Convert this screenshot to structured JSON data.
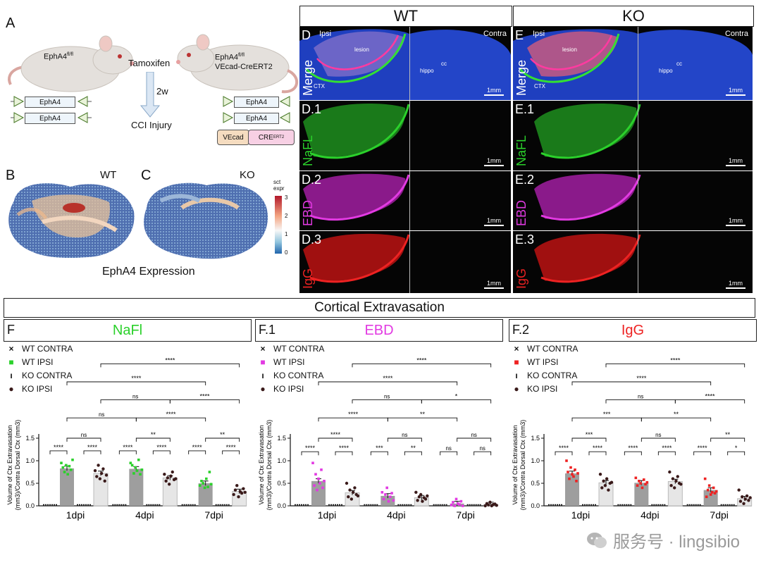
{
  "panel_a": {
    "letter": "A",
    "wt_mouse": "EphA4",
    "wt_mouse_sup": "fl/fl",
    "ko_mouse_line1": "EphA4",
    "ko_mouse_sup": "fl/fl",
    "ko_mouse_line2": "VEcad-CreERT2",
    "gene": "EphA4",
    "loxp": "LoxP",
    "vecad": "VEcad",
    "cre": "CRE",
    "cre_sup": "ERT2",
    "treatment": "Tamoxifen",
    "interval": "2w",
    "injury": "CCI Injury"
  },
  "panel_b": {
    "letter": "B",
    "label": "WT"
  },
  "panel_c": {
    "letter": "C",
    "label": "KO",
    "colorbar_title": "sct\nexpr",
    "colorbar_ticks": [
      "3",
      "2",
      "1",
      "0"
    ],
    "caption": "EphA4 Expression"
  },
  "micro": {
    "wt_header": "WT",
    "ko_header": "KO",
    "ipsi": "Ipsi",
    "contra": "Contra",
    "scale": "1mm",
    "rows": [
      {
        "wt_tag": "D",
        "ko_tag": "E",
        "side": "Merge",
        "color": "#ffffff"
      },
      {
        "wt_tag": "D.1",
        "ko_tag": "E.1",
        "side": "NaFL",
        "color": "#2bd12b"
      },
      {
        "wt_tag": "D.2",
        "ko_tag": "E.2",
        "side": "EBD",
        "color": "#e23ae2"
      },
      {
        "wt_tag": "D.3",
        "ko_tag": "E.3",
        "side": "IgG",
        "color": "#ee2222"
      }
    ],
    "annotations": {
      "lesion": "lesion",
      "ctx": "CTX",
      "hippo": "hippo",
      "cc": "cc"
    }
  },
  "section_title": "Cortical Extravasation",
  "legend": [
    "WT CONTRA",
    "WT IPSI",
    "KO CONTRA",
    "KO IPSI"
  ],
  "chart_data": [
    {
      "type": "bar",
      "panel": "F",
      "title": "NaFl",
      "title_color": "#2bd12b",
      "accent": "#2bd12b",
      "categories": [
        "1dpi",
        "4dpi",
        "7dpi"
      ],
      "ylabel": "Volume of Ctx Extravasation\n(mm3)/Contra Dorsal Ctx (mm3)",
      "yticks": [
        0.0,
        0.5,
        1.0,
        1.5
      ],
      "ytick_labels": [
        "0.0",
        "0.5",
        "1.0",
        "1.5"
      ],
      "ylim": [
        0,
        1.5
      ],
      "series": [
        {
          "name": "WT CONTRA",
          "values": [
            0.0,
            0.0,
            0.0
          ]
        },
        {
          "name": "WT IPSI",
          "values": [
            0.83,
            0.82,
            0.5
          ]
        },
        {
          "name": "KO CONTRA",
          "values": [
            0.01,
            0.0,
            0.0
          ]
        },
        {
          "name": "KO IPSI",
          "values": [
            0.72,
            0.62,
            0.32
          ]
        }
      ],
      "points": {
        "WT IPSI": [
          [
            0.95,
            0.85,
            0.75,
            0.9,
            0.7,
            0.88,
            0.8,
            1.02
          ],
          [
            0.95,
            0.9,
            0.72,
            0.85,
            0.78,
            1.02,
            0.7,
            0.8
          ],
          [
            0.45,
            0.55,
            0.5,
            0.4,
            0.6,
            0.42,
            0.75,
            0.48
          ]
        ],
        "KO IPSI": [
          [
            0.78,
            0.65,
            0.9,
            0.6,
            0.72,
            0.82,
            0.55,
            0.68
          ],
          [
            0.7,
            0.55,
            0.62,
            0.48,
            0.66,
            0.75,
            0.58,
            0.6
          ],
          [
            0.25,
            0.35,
            0.45,
            0.2,
            0.32,
            0.28,
            0.38,
            0.3
          ]
        ]
      },
      "brackets": [
        {
          "y": 1.22,
          "a": 0,
          "b": 1,
          "text": "****"
        },
        {
          "y": 1.22,
          "a": 2,
          "b": 3,
          "text": "****"
        },
        {
          "y": 1.22,
          "a": 4,
          "b": 5,
          "text": "****"
        },
        {
          "y": 1.22,
          "a": 6,
          "b": 7,
          "text": "****"
        },
        {
          "y": 1.22,
          "a": 8,
          "b": 9,
          "text": "****"
        },
        {
          "y": 1.22,
          "a": 10,
          "b": 11,
          "text": "****"
        },
        {
          "y": 1.5,
          "a": 1,
          "b": 3,
          "text": "ns"
        },
        {
          "y": 1.5,
          "a": 5,
          "b": 7,
          "text": "**"
        },
        {
          "y": 1.5,
          "a": 9,
          "b": 11,
          "text": "**"
        },
        {
          "y": 1.95,
          "a": 1,
          "b": 5,
          "text": "ns"
        },
        {
          "y": 1.95,
          "a": 5,
          "b": 9,
          "text": "****"
        },
        {
          "y": 2.35,
          "a": 3,
          "b": 7,
          "text": "ns"
        },
        {
          "y": 2.35,
          "a": 7,
          "b": 11,
          "text": "****"
        },
        {
          "y": 2.75,
          "a": 1,
          "b": 9,
          "text": "****"
        },
        {
          "y": 3.15,
          "a": 3,
          "b": 11,
          "text": "****"
        }
      ]
    },
    {
      "type": "bar",
      "panel": "F.1",
      "title": "EBD",
      "title_color": "#e23ae2",
      "accent": "#e23ae2",
      "categories": [
        "1dpi",
        "4dpi",
        "7dpi"
      ],
      "ylabel": "Volume of Ctx Extravasation\n(mm3)/Contra Dorsal Ctx (mm3)",
      "yticks": [
        0.0,
        0.5,
        1.0,
        1.5
      ],
      "ytick_labels": [
        "0.0",
        "0.5",
        "1.0",
        "1.5"
      ],
      "ylim": [
        0,
        1.5
      ],
      "series": [
        {
          "name": "WT CONTRA",
          "values": [
            0.0,
            0.0,
            0.0
          ]
        },
        {
          "name": "WT IPSI",
          "values": [
            0.55,
            0.22,
            0.05
          ]
        },
        {
          "name": "KO CONTRA",
          "values": [
            0.0,
            0.0,
            0.0
          ]
        },
        {
          "name": "KO IPSI",
          "values": [
            0.29,
            0.18,
            0.03
          ]
        }
      ],
      "points": {
        "WT IPSI": [
          [
            0.95,
            0.45,
            0.7,
            0.35,
            0.6,
            0.5,
            0.8,
            0.4,
            0.55
          ],
          [
            0.3,
            0.15,
            0.25,
            0.4,
            0.1,
            0.2,
            0.28,
            0.12
          ],
          [
            0.02,
            0.08,
            0.0,
            0.15,
            0.05,
            0.03,
            0.1,
            0.0
          ]
        ],
        "KO IPSI": [
          [
            0.5,
            0.2,
            0.35,
            0.15,
            0.3,
            0.4,
            0.25,
            0.22
          ],
          [
            0.3,
            0.12,
            0.2,
            0.25,
            0.1,
            0.18,
            0.15,
            0.22
          ],
          [
            0.0,
            0.05,
            0.02,
            0.08,
            0.0,
            0.03,
            0.04,
            0.01
          ]
        ]
      },
      "brackets": [
        {
          "y": 1.2,
          "a": 0,
          "b": 1,
          "text": "****"
        },
        {
          "y": 1.2,
          "a": 2,
          "b": 3,
          "text": "****"
        },
        {
          "y": 1.2,
          "a": 4,
          "b": 5,
          "text": "***"
        },
        {
          "y": 1.2,
          "a": 6,
          "b": 7,
          "text": "**"
        },
        {
          "y": 1.2,
          "a": 8,
          "b": 9,
          "text": "ns"
        },
        {
          "y": 1.2,
          "a": 10,
          "b": 11,
          "text": "ns"
        },
        {
          "y": 1.5,
          "a": 1,
          "b": 3,
          "text": "****"
        },
        {
          "y": 1.5,
          "a": 5,
          "b": 7,
          "text": "ns"
        },
        {
          "y": 1.5,
          "a": 9,
          "b": 11,
          "text": "ns"
        },
        {
          "y": 1.95,
          "a": 1,
          "b": 5,
          "text": "****"
        },
        {
          "y": 1.95,
          "a": 5,
          "b": 9,
          "text": "**"
        },
        {
          "y": 2.35,
          "a": 3,
          "b": 7,
          "text": "ns"
        },
        {
          "y": 2.35,
          "a": 7,
          "b": 11,
          "text": "*"
        },
        {
          "y": 2.75,
          "a": 1,
          "b": 9,
          "text": "****"
        },
        {
          "y": 3.15,
          "a": 3,
          "b": 11,
          "text": "****"
        }
      ]
    },
    {
      "type": "bar",
      "panel": "F.2",
      "title": "IgG",
      "title_color": "#ee2222",
      "accent": "#ee2222",
      "categories": [
        "1dpi",
        "4dpi",
        "7dpi"
      ],
      "ylabel": "Volume of Ctx Extravasation\n(mm3)/Contra Dorsal Ctx (mm3)",
      "yticks": [
        0.0,
        0.5,
        1.0,
        1.5
      ],
      "ytick_labels": [
        "0.0",
        "0.5",
        "1.0",
        "1.5"
      ],
      "ylim": [
        0,
        1.5
      ],
      "series": [
        {
          "name": "WT CONTRA",
          "values": [
            0.0,
            0.0,
            0.0
          ]
        },
        {
          "name": "WT IPSI",
          "values": [
            0.72,
            0.51,
            0.35
          ]
        },
        {
          "name": "KO CONTRA",
          "values": [
            0.0,
            0.0,
            0.0
          ]
        },
        {
          "name": "KO IPSI",
          "values": [
            0.51,
            0.54,
            0.16
          ]
        }
      ],
      "points": {
        "WT IPSI": [
          [
            1.0,
            0.75,
            0.6,
            0.85,
            0.7,
            0.65,
            0.8,
            0.55,
            0.72
          ],
          [
            0.62,
            0.45,
            0.55,
            0.5,
            0.4,
            0.58,
            0.48,
            0.52
          ],
          [
            0.6,
            0.2,
            0.35,
            0.45,
            0.25,
            0.3,
            0.4,
            0.28,
            0.32
          ]
        ],
        "KO IPSI": [
          [
            0.7,
            0.4,
            0.55,
            0.45,
            0.6,
            0.35,
            0.5,
            0.52
          ],
          [
            0.75,
            0.45,
            0.6,
            0.4,
            0.55,
            0.65,
            0.5,
            0.48
          ],
          [
            0.35,
            0.1,
            0.2,
            0.05,
            0.15,
            0.22,
            0.12,
            0.18
          ]
        ]
      },
      "brackets": [
        {
          "y": 1.2,
          "a": 0,
          "b": 1,
          "text": "****"
        },
        {
          "y": 1.2,
          "a": 2,
          "b": 3,
          "text": "****"
        },
        {
          "y": 1.2,
          "a": 4,
          "b": 5,
          "text": "****"
        },
        {
          "y": 1.2,
          "a": 6,
          "b": 7,
          "text": "****"
        },
        {
          "y": 1.2,
          "a": 8,
          "b": 9,
          "text": "****"
        },
        {
          "y": 1.2,
          "a": 10,
          "b": 11,
          "text": "*"
        },
        {
          "y": 1.5,
          "a": 1,
          "b": 3,
          "text": "***"
        },
        {
          "y": 1.5,
          "a": 5,
          "b": 7,
          "text": "ns"
        },
        {
          "y": 1.5,
          "a": 9,
          "b": 11,
          "text": "**"
        },
        {
          "y": 1.95,
          "a": 1,
          "b": 5,
          "text": "***"
        },
        {
          "y": 1.95,
          "a": 5,
          "b": 9,
          "text": "**"
        },
        {
          "y": 2.35,
          "a": 3,
          "b": 7,
          "text": "ns"
        },
        {
          "y": 2.35,
          "a": 7,
          "b": 11,
          "text": "****"
        },
        {
          "y": 2.75,
          "a": 1,
          "b": 9,
          "text": "****"
        },
        {
          "y": 3.15,
          "a": 3,
          "b": 11,
          "text": "****"
        }
      ]
    }
  ],
  "watermark": "服务号 · lingsibio"
}
